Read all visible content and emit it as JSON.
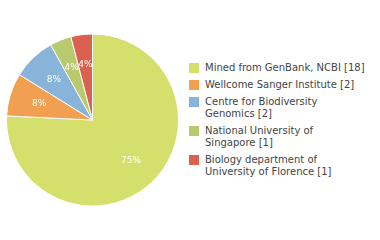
{
  "chart_data": {
    "type": "pie",
    "categories": [
      "Mined from GenBank, NCBI [18]",
      "Wellcome Sanger Institute [2]",
      "Centre for Biodiversity\nGenomics [2]",
      "National University of\nSingapore [1]",
      "Biology department of\nUniversity of Florence [1]"
    ],
    "values": [
      75,
      8,
      8,
      4,
      4
    ],
    "value_labels": [
      "75%",
      "8%",
      "8%",
      "4%",
      "4%"
    ],
    "colors": [
      "#d4e06b",
      "#f0a050",
      "#89b4d9",
      "#b8c96e",
      "#d9614e"
    ],
    "data_labels": true,
    "legend": "right"
  }
}
